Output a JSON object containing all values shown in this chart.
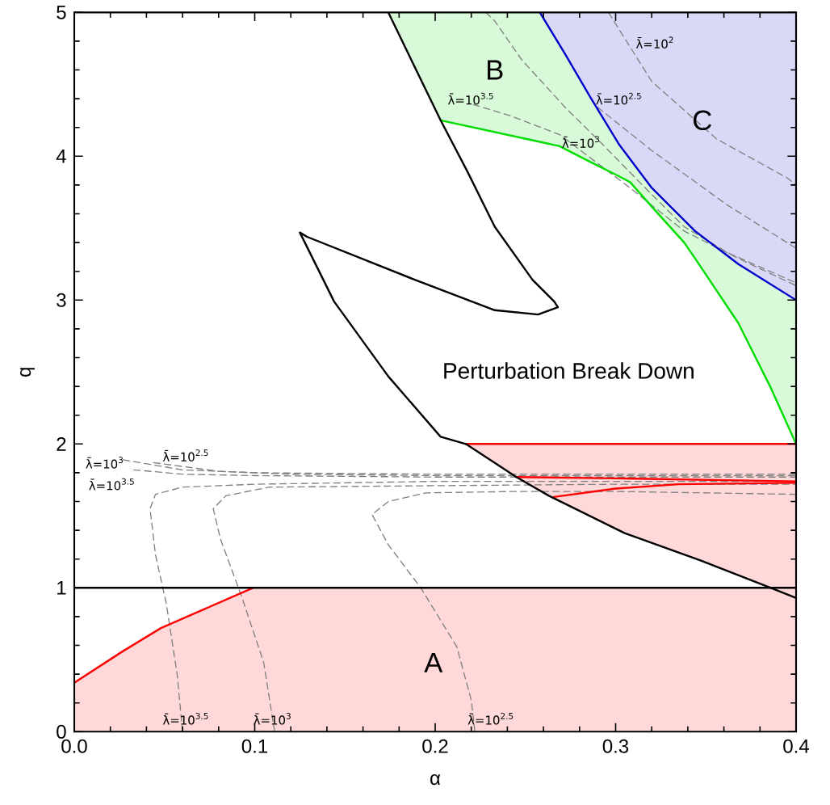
{
  "chart_data": {
    "type": "line",
    "xlabel": "α",
    "ylabel": "q",
    "xlim": [
      0,
      0.4
    ],
    "ylim": [
      0,
      5
    ],
    "xticks": [
      {
        "value": 0,
        "label": "0.0"
      },
      {
        "value": 0.1,
        "label": "0.1"
      },
      {
        "value": 0.2,
        "label": "0.2"
      },
      {
        "value": 0.3,
        "label": "0.3"
      },
      {
        "value": 0.4,
        "label": "0.4"
      }
    ],
    "yticks": [
      0,
      1,
      2,
      3,
      4,
      5
    ],
    "series": [
      {
        "color": "#808080",
        "line_style": "dashed",
        "x": [
          0.296,
          0.32,
          0.356,
          0.395,
          0.4
        ],
        "values": [
          5,
          4.52,
          4.12,
          3.85,
          3.8
        ]
      },
      {
        "color": "#808080",
        "line_style": "dashed",
        "x": [
          0.29,
          0.32,
          0.362,
          0.395,
          0.4
        ],
        "values": [
          4.34,
          4.04,
          3.66,
          3.4,
          3.36
        ]
      },
      {
        "color": "#808080",
        "line_style": "dashed",
        "x": [
          0.228,
          0.233,
          0.248,
          0.272,
          0.293,
          0.314,
          0.338,
          0.362,
          0.4
        ],
        "values": [
          5,
          4.94,
          4.67,
          4.34,
          4.08,
          3.81,
          3.51,
          3.33,
          3.12
        ]
      },
      {
        "color": "#808080",
        "line_style": "dashed",
        "x": [
          0.221,
          0.242,
          0.269,
          0.308,
          0.338,
          0.368,
          0.4
        ],
        "values": [
          4.36,
          4.28,
          4.15,
          3.78,
          3.48,
          3.29,
          3.1
        ]
      },
      {
        "color": "#808080",
        "line_style": "dashed",
        "x": [
          0.027,
          0.06,
          0.1,
          0.2,
          0.3,
          0.4
        ],
        "values": [
          1.89,
          1.82,
          1.8,
          1.79,
          1.79,
          1.79
        ]
      },
      {
        "color": "#808080",
        "line_style": "dashed",
        "x": [
          0.033,
          0.06,
          0.1,
          0.2,
          0.3,
          0.4
        ],
        "values": [
          1.82,
          1.79,
          1.78,
          1.77,
          1.77,
          1.77
        ]
      },
      {
        "color": "#808080",
        "line_style": "dashed",
        "x": [
          0.044,
          0.08,
          0.12,
          0.2,
          0.3,
          0.4
        ],
        "values": [
          1.87,
          1.81,
          1.79,
          1.78,
          1.78,
          1.78
        ]
      },
      {
        "color": "#808080",
        "line_style": "dashed",
        "x": [
          0.06,
          0.057,
          0.051,
          0.045,
          0.042,
          0.045,
          0.06,
          0.1,
          0.2,
          0.3,
          0.4
        ],
        "values": [
          0,
          0.4,
          0.89,
          1.23,
          1.55,
          1.65,
          1.7,
          1.72,
          1.74,
          1.74,
          1.74
        ]
      },
      {
        "color": "#808080",
        "line_style": "dashed",
        "x": [
          0.111,
          0.105,
          0.093,
          0.081,
          0.077,
          0.084,
          0.108,
          0.2,
          0.3,
          0.4
        ],
        "values": [
          0,
          0.48,
          0.93,
          1.34,
          1.55,
          1.64,
          1.7,
          1.71,
          1.72,
          1.72
        ]
      },
      {
        "color": "#808080",
        "line_style": "dashed",
        "x": [
          0.222,
          0.22,
          0.212,
          0.192,
          0.174,
          0.165,
          0.174,
          0.195,
          0.245,
          0.3,
          0.4
        ],
        "values": [
          0,
          0.22,
          0.59,
          1.0,
          1.3,
          1.51,
          1.6,
          1.66,
          1.67,
          1.67,
          1.65
        ]
      },
      {
        "color": "#ff0000",
        "x": [
          0,
          0.027,
          0.048,
          0.099,
          0.4
        ],
        "values": [
          0.34,
          0.56,
          0.72,
          1.0,
          null
        ],
        "lower": [
          0,
          0,
          0,
          0,
          0
        ],
        "upper": [
          0.34,
          0.56,
          0.72,
          1.0,
          1.0
        ]
      },
      {
        "color": "#ff0000",
        "x": [
          0.217,
          0.245,
          0.263,
          0.305,
          0.347,
          0.386,
          0.4
        ],
        "values": [
          2,
          2,
          2,
          2,
          2,
          2,
          2
        ],
        "lower": [
          2.0,
          1.77,
          1.64,
          1.38,
          1.19,
          1.0,
          1.0
        ],
        "upper": [
          2,
          2,
          2,
          2,
          2,
          2,
          2
        ]
      },
      {
        "color": "#00dd00",
        "x": [
          0.203,
          0.258,
          0.269,
          0.272,
          0.286,
          0.302,
          0.308,
          0.32,
          0.338,
          0.344,
          0.368,
          0.386,
          0.4
        ],
        "values": [
          4.25,
          4.1,
          4.07,
          4.05,
          3.96,
          3.86,
          3.82,
          3.65,
          3.4,
          3.29,
          2.84,
          2.39,
          2.0
        ],
        "lower": [
          4.25,
          4.1,
          4.07,
          4.05,
          3.96,
          3.86,
          3.82,
          3.65,
          3.4,
          3.29,
          2.84,
          2.39,
          2.0
        ],
        "upper": [
          5,
          5,
          4.77,
          4.71,
          4.41,
          4.08,
          3.98,
          3.78,
          3.56,
          3.48,
          3.25,
          3.11,
          3.0
        ]
      },
      {
        "color": "#00dd00",
        "x": [
          0.174,
          0.19,
          0.203
        ],
        "values": [
          null,
          null,
          null
        ],
        "lower": [
          5,
          4.6,
          4.25
        ],
        "upper": [
          5,
          5,
          5
        ]
      },
      {
        "color": "#0000cc",
        "x": [
          0.258,
          0.272,
          0.286,
          0.302,
          0.32,
          0.344,
          0.368,
          0.4
        ],
        "values": [
          5,
          4.71,
          4.41,
          4.08,
          3.78,
          3.48,
          3.25,
          3.0
        ],
        "lower": [
          5,
          4.71,
          4.41,
          4.08,
          3.78,
          3.48,
          3.25,
          3.0
        ],
        "upper": [
          5,
          5,
          5,
          5,
          5,
          5,
          5,
          5
        ]
      },
      {
        "color": "#000000",
        "x": [
          0,
          0.4
        ],
        "values": [
          1,
          1
        ]
      },
      {
        "color": "#ff0000",
        "x": [
          0.245,
          0.305,
          0.4
        ],
        "values": [
          1.77,
          1.76,
          1.74
        ]
      },
      {
        "color": "#ff0000",
        "x": [
          0.265,
          0.3,
          0.335,
          0.4
        ],
        "values": [
          1.63,
          1.69,
          1.72,
          1.73
        ]
      },
      {
        "color": "#000000",
        "x": [
          0.174,
          0.203,
          0.218,
          0.233,
          0.254,
          0.266,
          0.268,
          0.257,
          0.233,
          0.189,
          0.129,
          0.125,
          0.144,
          0.174,
          0.203,
          0.217,
          0.245,
          0.263,
          0.305,
          0.347,
          0.386,
          0.4
        ],
        "values": [
          5,
          4.25,
          3.89,
          3.51,
          3.14,
          2.99,
          2.95,
          2.9,
          2.93,
          3.14,
          3.44,
          3.47,
          2.99,
          2.47,
          2.05,
          2.0,
          1.77,
          1.64,
          1.38,
          1.19,
          1.0,
          0.93
        ]
      }
    ],
    "annotations": [
      "A",
      "B",
      "C",
      "Perturbation Break Down",
      "λ̄=10$^{2}$",
      "λ̄=10$^{2.5}$",
      "λ̄=10$^{3}$",
      "λ̄=10$^{3.5}$",
      "λ̄=10$^{3}$",
      "λ̄=10$^{3.5}$",
      "λ̄=10$^{2.5}$",
      "λ̄=10$^{3.5}$",
      "λ̄=10$^{3}$",
      "λ̄=10$^{2.5}$"
    ]
  }
}
